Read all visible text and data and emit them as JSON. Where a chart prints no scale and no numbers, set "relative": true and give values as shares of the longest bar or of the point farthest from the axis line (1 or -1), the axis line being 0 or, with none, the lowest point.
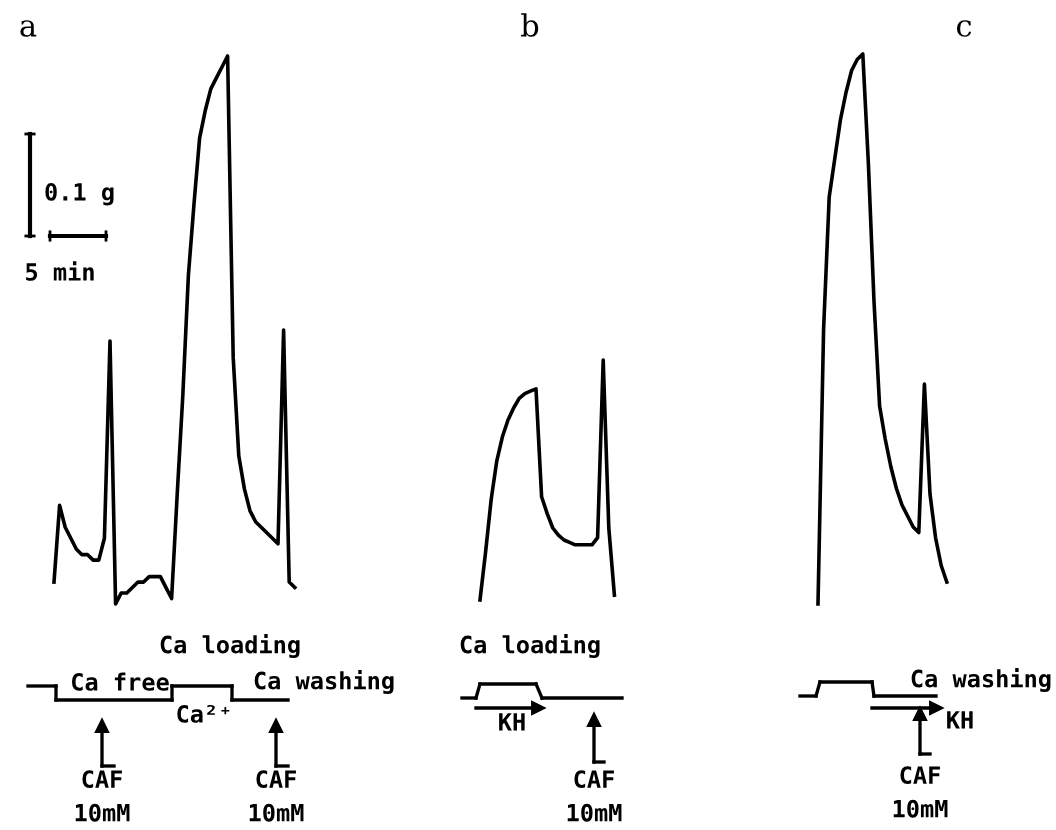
{
  "chart_data": [
    {
      "type": "line",
      "title": "a",
      "relative": true,
      "color": "#000000",
      "marker": "none",
      "line_style": "solid",
      "grid": false,
      "legend": false,
      "tick_labels": false,
      "categories": [
        null,
        null,
        null,
        null,
        null,
        null,
        null,
        null,
        null,
        null,
        null,
        null,
        null,
        null,
        null,
        null,
        null,
        null,
        null,
        null,
        null,
        null,
        null,
        null,
        null,
        null,
        null,
        null,
        null,
        null,
        null,
        null,
        null,
        null,
        null,
        null,
        null,
        null,
        null,
        null,
        null,
        null,
        null,
        null
      ],
      "values": [
        0.04,
        0.18,
        0.14,
        0.12,
        0.1,
        0.09,
        0.09,
        0.08,
        0.08,
        0.12,
        0.48,
        0,
        0.02,
        0.02,
        0.03,
        0.04,
        0.04,
        0.05,
        0.05,
        0.05,
        0.03,
        0.01,
        0.2,
        0.38,
        0.6,
        0.73,
        0.85,
        0.9,
        0.94,
        0.96,
        0.98,
        1,
        0.45,
        0.27,
        0.21,
        0.17,
        0.15,
        0.14,
        0.13,
        0.12,
        0.11,
        0.5,
        0.04,
        0.03
      ],
      "annotations": [
        "0.1 g",
        "5 min",
        "Ca loading",
        "Ca free",
        "Ca²⁺",
        "Ca washing",
        "CAF\n10mM",
        "CAF\n10mM"
      ]
    },
    {
      "type": "line",
      "title": "b",
      "relative": true,
      "color": "#000000",
      "marker": "none",
      "line_style": "solid",
      "grid": false,
      "legend": false,
      "tick_labels": false,
      "categories": [
        null,
        null,
        null,
        null,
        null,
        null,
        null,
        null,
        null,
        null,
        null,
        null,
        null,
        null,
        null,
        null,
        null,
        null,
        null,
        null,
        null,
        null,
        null,
        null,
        null
      ],
      "values": [
        0,
        0.2,
        0.42,
        0.58,
        0.68,
        0.75,
        0.8,
        0.84,
        0.86,
        0.87,
        0.88,
        0.43,
        0.36,
        0.3,
        0.27,
        0.25,
        0.24,
        0.23,
        0.23,
        0.23,
        0.23,
        0.26,
        1,
        0.3,
        0.02
      ],
      "annotations": [
        "Ca loading",
        "KH",
        "CAF\n10mM"
      ]
    },
    {
      "type": "line",
      "title": "c",
      "relative": true,
      "color": "#000000",
      "marker": "none",
      "line_style": "solid",
      "grid": false,
      "legend": false,
      "tick_labels": false,
      "categories": [
        null,
        null,
        null,
        null,
        null,
        null,
        null,
        null,
        null,
        null,
        null,
        null,
        null,
        null,
        null,
        null,
        null,
        null,
        null,
        null,
        null,
        null,
        null,
        null
      ],
      "values": [
        0,
        0.5,
        0.74,
        0.81,
        0.88,
        0.93,
        0.97,
        0.99,
        1,
        0.8,
        0.55,
        0.36,
        0.3,
        0.25,
        0.21,
        0.18,
        0.16,
        0.14,
        0.13,
        0.4,
        0.2,
        0.12,
        0.07,
        0.04
      ],
      "annotations": [
        "Ca washing",
        "KH",
        "CAF\n10mM"
      ]
    }
  ]
}
